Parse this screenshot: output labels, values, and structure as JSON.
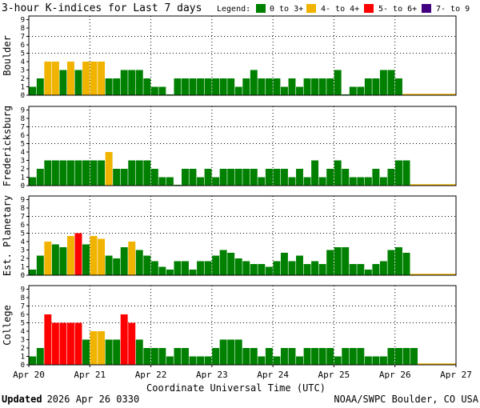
{
  "chart_data": {
    "type": "bar",
    "title": "3-hour K-indices for Last 7 days",
    "legend": {
      "label": "Legend:",
      "placement": "top-right",
      "entries": [
        {
          "label": "0 to 3+",
          "color": "#008000"
        },
        {
          "label": "4- to 4+",
          "color": "#f0b400"
        },
        {
          "label": "5- to 6+",
          "color": "#ff0000"
        },
        {
          "label": "7- to 9",
          "color": "#400080"
        }
      ]
    },
    "xlabel": "Coordinate Universal Time (UTC)",
    "x_ticks": [
      "Apr 20",
      "Apr 21",
      "Apr 22",
      "Apr 23",
      "Apr 24",
      "Apr 25",
      "Apr 26",
      "Apr 27"
    ],
    "y_ticks": [
      "0",
      "1",
      "2",
      "3",
      "4",
      "5",
      "6",
      "7",
      "8",
      "9"
    ],
    "ylim": [
      0,
      9
    ],
    "grid": "dotted",
    "series": [
      {
        "name": "Boulder",
        "values": [
          1,
          2,
          4,
          4,
          3,
          4,
          3,
          4,
          4,
          4,
          2,
          2,
          3,
          3,
          3,
          2,
          1,
          1,
          0.1,
          2,
          2,
          2,
          2,
          2,
          2,
          2,
          2,
          1,
          2,
          3,
          2,
          2,
          2,
          1,
          2,
          1,
          2,
          2,
          2,
          2,
          3,
          0.1,
          1,
          1,
          2,
          2,
          3,
          3,
          2
        ]
      },
      {
        "name": "Fredericksburg",
        "values": [
          1,
          2,
          3,
          3,
          3,
          3,
          3,
          3,
          3,
          3,
          4,
          2,
          2,
          3,
          3,
          3,
          2,
          1,
          1,
          0.1,
          2,
          2,
          1,
          2,
          1,
          2,
          2,
          2,
          2,
          2,
          1,
          2,
          2,
          2,
          1,
          2,
          1,
          3,
          1,
          2,
          3,
          2,
          1,
          1,
          1,
          2,
          1,
          2,
          3,
          3
        ]
      },
      {
        "name": "Est. Planetary",
        "values": [
          0.67,
          2.33,
          4,
          3.67,
          3.33,
          4.67,
          5,
          3.67,
          4.67,
          4.33,
          2.33,
          2,
          3.33,
          4,
          3,
          2.33,
          1.67,
          1,
          0.67,
          1.67,
          1.67,
          0.67,
          1.67,
          1.67,
          2.33,
          3,
          2.67,
          2,
          1.67,
          1.33,
          1.33,
          1,
          1.67,
          2.67,
          1.67,
          2.33,
          1.33,
          1.67,
          1.33,
          3,
          3.33,
          3.33,
          1.33,
          1.33,
          0.67,
          1.33,
          1.67,
          3,
          3.33,
          2.67
        ]
      },
      {
        "name": "College",
        "values": [
          1,
          2,
          6,
          5,
          5,
          5,
          5,
          3,
          4,
          4,
          3,
          3,
          6,
          5,
          3,
          2,
          2,
          2,
          1,
          2,
          2,
          1,
          1,
          1,
          2,
          3,
          3,
          3,
          2,
          2,
          1,
          2,
          1,
          2,
          2,
          1,
          2,
          2,
          2,
          2,
          1,
          2,
          2,
          2,
          1,
          1,
          1,
          2,
          2,
          2,
          2
        ]
      }
    ]
  },
  "footer": {
    "updated_label": "Updated",
    "updated_value": "2026 Apr 26 0330",
    "source": "NOAA/SWPC Boulder, CO USA"
  }
}
